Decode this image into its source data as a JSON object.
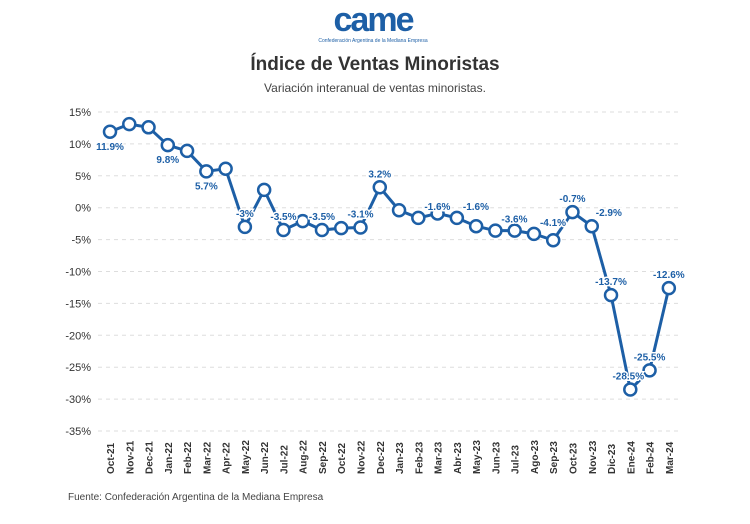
{
  "logo": {
    "text": "came",
    "tagline": "Confederación Argentina de la Mediana Empresa"
  },
  "chart_data": {
    "type": "line",
    "title": "Índice de Ventas Minoristas",
    "subtitle": "Variación interanual de ventas minoristas.",
    "source": "Fuente: Confederación Argentina de la Mediana Empresa",
    "ylim": [
      -35,
      15
    ],
    "yticks": [
      15,
      10,
      5,
      0,
      -5,
      -10,
      -15,
      -20,
      -25,
      -30,
      -35
    ],
    "ytick_labels": [
      "15%",
      "10%",
      "5%",
      "0%",
      "-5%",
      "-10%",
      "-15%",
      "-20%",
      "-25%",
      "-30%",
      "-35%"
    ],
    "grid": true,
    "color": "#1d5fa6",
    "categories": [
      "Oct-21",
      "Nov-21",
      "Dec-21",
      "Jan-22",
      "Feb-22",
      "Mar-22",
      "Apr-22",
      "May-22",
      "Jun-22",
      "Jul-22",
      "Aug-22",
      "Sep-22",
      "Oct-22",
      "Nov-22",
      "Dec-22",
      "Jan-23",
      "Feb-23",
      "Mar-23",
      "Abr-23",
      "May-23",
      "Jun-23",
      "Jul-23",
      "Ago-23",
      "Sep-23",
      "Oct-23",
      "Nov-23",
      "Dic-23",
      "Ene-24",
      "Feb-24",
      "Mar-24"
    ],
    "values": [
      11.9,
      13.1,
      12.6,
      9.8,
      8.9,
      5.7,
      6.1,
      -3.0,
      2.8,
      -3.5,
      -2.1,
      -3.5,
      -3.2,
      -3.1,
      3.2,
      -0.4,
      -1.6,
      -0.9,
      -1.6,
      -2.9,
      -3.6,
      -3.6,
      -4.1,
      -5.1,
      -0.7,
      -2.9,
      -13.7,
      -28.5,
      -25.5,
      -12.6
    ],
    "data_labels": [
      "11.9%",
      null,
      null,
      "9.8%",
      null,
      "5.7%",
      null,
      "-3%",
      null,
      "-3.5%",
      null,
      "-3.5%",
      null,
      "-3.1%",
      "3.2%",
      null,
      "-1.6%",
      null,
      "-1.6%",
      null,
      "-3.6%",
      null,
      "-4.1%",
      null,
      "-0.7%",
      "-2.9%",
      "-13.7%",
      "-28.5%",
      "-25.5%",
      "-12.6%"
    ]
  }
}
